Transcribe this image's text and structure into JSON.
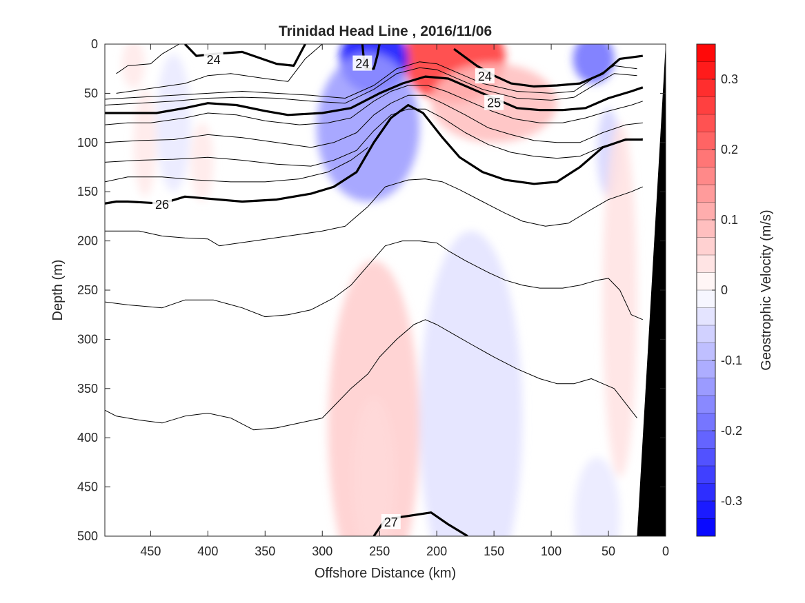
{
  "chart_data": {
    "type": "heatmap",
    "title": "Trinidad Head Line , 2016/11/06",
    "xlabel": "Offshore Distance (km)",
    "ylabel": "Depth (m)",
    "colorbar_label": "Geostrophic Velocity (m/s)",
    "xlim": [
      490,
      0
    ],
    "ylim": [
      0,
      500
    ],
    "x_reversed": true,
    "y_reversed": true,
    "colorbar_lim": [
      -0.35,
      0.35
    ],
    "x_ticks": [
      450,
      400,
      350,
      300,
      250,
      200,
      150,
      100,
      50,
      0
    ],
    "y_ticks": [
      0,
      50,
      100,
      150,
      200,
      250,
      300,
      350,
      400,
      450,
      500
    ],
    "colorbar_ticks": [
      0.3,
      0.2,
      0.1,
      0,
      -0.1,
      -0.2,
      -0.3
    ],
    "colors": {
      "positive": "#ff0000",
      "negative": "#0000ff",
      "contour": "#000000",
      "bathymetry": "#000000"
    },
    "velocity_blobs": [
      {
        "cx": 185,
        "cy": 15,
        "rx": 45,
        "ry": 45,
        "v": 0.28
      },
      {
        "cx": 150,
        "cy": 60,
        "rx": 55,
        "ry": 40,
        "v": 0.09
      },
      {
        "cx": 255,
        "cy": 15,
        "rx": 30,
        "ry": 35,
        "v": -0.33
      },
      {
        "cx": 260,
        "cy": 85,
        "rx": 45,
        "ry": 75,
        "v": -0.14
      },
      {
        "cx": 63,
        "cy": 15,
        "rx": 18,
        "ry": 25,
        "v": -0.2
      },
      {
        "cx": 50,
        "cy": 110,
        "rx": 10,
        "ry": 45,
        "v": -0.06
      },
      {
        "cx": 255,
        "cy": 390,
        "rx": 40,
        "ry": 170,
        "v": 0.07
      },
      {
        "cx": 255,
        "cy": 440,
        "rx": 18,
        "ry": 80,
        "v": 0.05
      },
      {
        "cx": 170,
        "cy": 380,
        "rx": 45,
        "ry": 190,
        "v": -0.04
      },
      {
        "cx": 40,
        "cy": 260,
        "rx": 15,
        "ry": 180,
        "v": 0.04
      },
      {
        "cx": 60,
        "cy": 480,
        "rx": 20,
        "ry": 60,
        "v": -0.03
      },
      {
        "cx": 455,
        "cy": 100,
        "rx": 10,
        "ry": 55,
        "v": 0.03
      },
      {
        "cx": 405,
        "cy": 120,
        "rx": 10,
        "ry": 40,
        "v": 0.03
      },
      {
        "cx": 430,
        "cy": 80,
        "rx": 15,
        "ry": 70,
        "v": -0.03
      },
      {
        "cx": 465,
        "cy": 20,
        "rx": 10,
        "ry": 25,
        "v": 0.03
      }
    ],
    "density_contours": [
      {
        "level": 24,
        "thick": true,
        "points": [
          [
            420,
            0
          ],
          [
            410,
            12
          ],
          [
            395,
            10
          ],
          [
            370,
            8
          ],
          [
            340,
            20
          ],
          [
            325,
            22
          ],
          [
            315,
            0
          ]
        ],
        "label": {
          "text": "24",
          "x": 395,
          "y": 16
        }
      },
      {
        "level": 24,
        "thick": true,
        "points": [
          [
            265,
            0
          ],
          [
            264,
            12
          ],
          [
            262,
            25
          ],
          [
            255,
            25
          ],
          [
            252,
            12
          ],
          [
            250,
            0
          ]
        ],
        "label": {
          "text": "24",
          "x": 265,
          "y": 20
        }
      },
      {
        "level": 24,
        "thick": true,
        "points": [
          [
            185,
            5
          ],
          [
            165,
            22
          ],
          [
            150,
            32
          ],
          [
            135,
            40
          ],
          [
            115,
            43
          ],
          [
            95,
            42
          ],
          [
            75,
            40
          ],
          [
            55,
            30
          ],
          [
            40,
            15
          ],
          [
            20,
            12
          ]
        ],
        "label": {
          "text": "24",
          "x": 158,
          "y": 33
        }
      },
      {
        "level": 25,
        "thick": true,
        "points": [
          [
            490,
            70
          ],
          [
            470,
            70
          ],
          [
            445,
            70
          ],
          [
            420,
            65
          ],
          [
            400,
            60
          ],
          [
            375,
            62
          ],
          [
            350,
            68
          ],
          [
            330,
            72
          ],
          [
            300,
            70
          ],
          [
            275,
            65
          ],
          [
            250,
            50
          ],
          [
            230,
            40
          ],
          [
            210,
            33
          ],
          [
            190,
            35
          ],
          [
            170,
            45
          ],
          [
            150,
            55
          ],
          [
            130,
            65
          ],
          [
            110,
            67
          ],
          [
            90,
            67
          ],
          [
            70,
            65
          ],
          [
            50,
            55
          ],
          [
            30,
            48
          ],
          [
            20,
            44
          ]
        ],
        "label": {
          "text": "25",
          "x": 150,
          "y": 60
        }
      },
      {
        "level": 26,
        "thick": true,
        "points": [
          [
            490,
            162
          ],
          [
            480,
            160
          ],
          [
            470,
            160
          ],
          [
            440,
            162
          ],
          [
            420,
            155
          ],
          [
            400,
            157
          ],
          [
            370,
            160
          ],
          [
            340,
            158
          ],
          [
            310,
            152
          ],
          [
            290,
            145
          ],
          [
            270,
            130
          ],
          [
            255,
            100
          ],
          [
            240,
            75
          ],
          [
            225,
            62
          ],
          [
            212,
            70
          ],
          [
            195,
            95
          ],
          [
            180,
            115
          ],
          [
            160,
            130
          ],
          [
            140,
            138
          ],
          [
            115,
            142
          ],
          [
            95,
            140
          ],
          [
            75,
            125
          ],
          [
            55,
            105
          ],
          [
            35,
            97
          ],
          [
            20,
            97
          ]
        ],
        "label": {
          "text": "26",
          "x": 440,
          "y": 163
        }
      },
      {
        "level": 27,
        "thick": true,
        "points": [
          [
            255,
            500
          ],
          [
            245,
            483
          ],
          [
            228,
            480
          ],
          [
            205,
            476
          ],
          [
            190,
            488
          ],
          [
            173,
            500
          ]
        ],
        "label": {
          "text": "27",
          "x": 240,
          "y": 486
        }
      }
    ],
    "thin_contours": [
      [
        [
          480,
          30
        ],
        [
          470,
          22
        ],
        [
          450,
          20
        ],
        [
          440,
          10
        ],
        [
          425,
          0
        ]
      ],
      [
        [
          480,
          50
        ],
        [
          450,
          45
        ],
        [
          420,
          40
        ],
        [
          400,
          32
        ],
        [
          380,
          30
        ],
        [
          350,
          35
        ],
        [
          330,
          38
        ],
        [
          315,
          15
        ],
        [
          300,
          0
        ]
      ],
      [
        [
          490,
          56
        ],
        [
          460,
          54
        ],
        [
          430,
          52
        ],
        [
          400,
          50
        ],
        [
          370,
          48
        ],
        [
          340,
          50
        ],
        [
          310,
          52
        ],
        [
          280,
          55
        ],
        [
          255,
          42
        ],
        [
          235,
          25
        ],
        [
          215,
          18
        ],
        [
          200,
          20
        ],
        [
          180,
          30
        ],
        [
          160,
          40
        ],
        [
          130,
          48
        ],
        [
          100,
          50
        ],
        [
          80,
          48
        ],
        [
          60,
          32
        ],
        [
          45,
          22
        ],
        [
          25,
          25
        ]
      ],
      [
        [
          490,
          62
        ],
        [
          460,
          60
        ],
        [
          430,
          58
        ],
        [
          400,
          55
        ],
        [
          370,
          54
        ],
        [
          340,
          55
        ],
        [
          310,
          58
        ],
        [
          280,
          60
        ],
        [
          255,
          46
        ],
        [
          235,
          30
        ],
        [
          215,
          24
        ],
        [
          200,
          26
        ],
        [
          180,
          36
        ],
        [
          160,
          46
        ],
        [
          130,
          55
        ],
        [
          100,
          57
        ],
        [
          80,
          54
        ],
        [
          60,
          40
        ],
        [
          45,
          30
        ],
        [
          25,
          32
        ]
      ],
      [
        [
          490,
          82
        ],
        [
          470,
          80
        ],
        [
          450,
          80
        ],
        [
          420,
          75
        ],
        [
          400,
          70
        ],
        [
          375,
          72
        ],
        [
          350,
          78
        ],
        [
          320,
          82
        ],
        [
          295,
          80
        ],
        [
          275,
          75
        ],
        [
          255,
          58
        ],
        [
          240,
          48
        ],
        [
          225,
          42
        ],
        [
          208,
          42
        ],
        [
          192,
          48
        ],
        [
          172,
          58
        ],
        [
          152,
          68
        ],
        [
          132,
          76
        ],
        [
          110,
          80
        ],
        [
          90,
          80
        ],
        [
          70,
          75
        ],
        [
          50,
          68
        ],
        [
          30,
          62
        ],
        [
          20,
          58
        ]
      ],
      [
        [
          490,
          100
        ],
        [
          460,
          98
        ],
        [
          430,
          97
        ],
        [
          400,
          92
        ],
        [
          370,
          95
        ],
        [
          340,
          100
        ],
        [
          310,
          105
        ],
        [
          290,
          100
        ],
        [
          270,
          90
        ],
        [
          255,
          72
        ],
        [
          240,
          60
        ],
        [
          225,
          52
        ],
        [
          210,
          52
        ],
        [
          195,
          60
        ],
        [
          175,
          72
        ],
        [
          155,
          85
        ],
        [
          135,
          92
        ],
        [
          115,
          98
        ],
        [
          95,
          100
        ],
        [
          75,
          100
        ],
        [
          55,
          90
        ],
        [
          35,
          82
        ],
        [
          20,
          80
        ]
      ],
      [
        [
          490,
          120
        ],
        [
          460,
          118
        ],
        [
          430,
          117
        ],
        [
          400,
          115
        ],
        [
          370,
          118
        ],
        [
          340,
          122
        ],
        [
          310,
          124
        ],
        [
          290,
          118
        ],
        [
          270,
          108
        ],
        [
          255,
          88
        ],
        [
          240,
          72
        ],
        [
          225,
          66
        ],
        [
          210,
          66
        ],
        [
          195,
          75
        ],
        [
          175,
          90
        ],
        [
          155,
          102
        ],
        [
          135,
          110
        ],
        [
          115,
          114
        ],
        [
          95,
          116
        ],
        [
          75,
          114
        ],
        [
          55,
          104
        ],
        [
          35,
          98
        ],
        [
          20,
          96
        ]
      ],
      [
        [
          490,
          140
        ],
        [
          470,
          135
        ],
        [
          440,
          135
        ],
        [
          410,
          138
        ],
        [
          380,
          140
        ],
        [
          350,
          140
        ],
        [
          320,
          137
        ],
        [
          295,
          130
        ],
        [
          275,
          118
        ],
        [
          260,
          105
        ]
      ],
      [
        [
          490,
          190
        ],
        [
          460,
          190
        ],
        [
          440,
          195
        ],
        [
          420,
          197
        ],
        [
          400,
          198
        ],
        [
          390,
          205
        ],
        [
          360,
          200
        ],
        [
          330,
          195
        ],
        [
          300,
          190
        ],
        [
          280,
          185
        ],
        [
          260,
          165
        ],
        [
          245,
          145
        ],
        [
          225,
          138
        ],
        [
          210,
          137
        ],
        [
          195,
          140
        ],
        [
          180,
          148
        ],
        [
          160,
          160
        ],
        [
          140,
          172
        ],
        [
          125,
          180
        ],
        [
          105,
          185
        ],
        [
          85,
          182
        ],
        [
          65,
          168
        ],
        [
          50,
          158
        ],
        [
          30,
          150
        ],
        [
          20,
          145
        ]
      ],
      [
        [
          490,
          262
        ],
        [
          470,
          265
        ],
        [
          440,
          268
        ],
        [
          420,
          260
        ],
        [
          395,
          260
        ],
        [
          370,
          268
        ],
        [
          350,
          277
        ],
        [
          330,
          275
        ],
        [
          310,
          270
        ],
        [
          290,
          258
        ],
        [
          275,
          245
        ],
        [
          260,
          225
        ],
        [
          245,
          205
        ],
        [
          230,
          200
        ],
        [
          215,
          200
        ],
        [
          200,
          202
        ],
        [
          190,
          210
        ],
        [
          175,
          220
        ],
        [
          155,
          232
        ],
        [
          140,
          240
        ],
        [
          125,
          245
        ],
        [
          110,
          248
        ],
        [
          90,
          248
        ],
        [
          75,
          245
        ],
        [
          60,
          240
        ],
        [
          50,
          238
        ],
        [
          40,
          250
        ],
        [
          30,
          275
        ],
        [
          20,
          280
        ]
      ],
      [
        [
          490,
          372
        ],
        [
          480,
          378
        ],
        [
          460,
          382
        ],
        [
          440,
          385
        ],
        [
          420,
          378
        ],
        [
          400,
          375
        ],
        [
          380,
          380
        ],
        [
          360,
          392
        ],
        [
          340,
          390
        ],
        [
          320,
          385
        ],
        [
          300,
          380
        ],
        [
          290,
          368
        ],
        [
          275,
          350
        ],
        [
          260,
          335
        ],
        [
          250,
          318
        ],
        [
          235,
          300
        ],
        [
          220,
          285
        ],
        [
          210,
          280
        ],
        [
          200,
          285
        ],
        [
          185,
          295
        ],
        [
          170,
          305
        ],
        [
          150,
          318
        ],
        [
          130,
          330
        ],
        [
          110,
          340
        ],
        [
          95,
          345
        ],
        [
          80,
          345
        ],
        [
          65,
          340
        ],
        [
          55,
          345
        ],
        [
          45,
          350
        ],
        [
          35,
          365
        ],
        [
          25,
          380
        ]
      ]
    ],
    "bathymetry": [
      [
        0,
        0
      ],
      [
        25,
        500
      ],
      [
        0,
        500
      ]
    ]
  }
}
